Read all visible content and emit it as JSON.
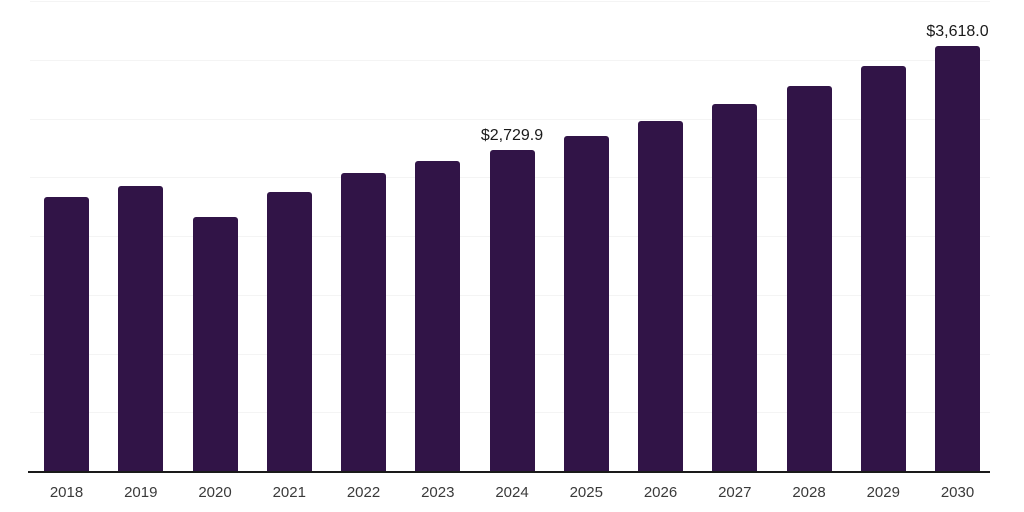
{
  "chart_data": {
    "type": "bar",
    "title": "",
    "xlabel": "",
    "ylabel": "",
    "categories": [
      "2018",
      "2019",
      "2020",
      "2021",
      "2022",
      "2023",
      "2024",
      "2025",
      "2026",
      "2027",
      "2028",
      "2029",
      "2030"
    ],
    "values": [
      2330,
      2428,
      2166,
      2372,
      2536,
      2636,
      2729.9,
      2855,
      2979,
      3126,
      3273,
      3450,
      3618
    ],
    "data_labels": {
      "2024": "$2,729.9",
      "2030": "$3,618.0"
    },
    "ylim": [
      0,
      4000
    ],
    "gridline_step": 500,
    "grid": true,
    "legend": false,
    "colors": {
      "bar": "#311447",
      "axis": "#1a1a1a",
      "gridline": "#f4f4f4",
      "data_label": "#1a1a1a",
      "tick_label": "#3a3a3a",
      "background": "#ffffff"
    }
  }
}
